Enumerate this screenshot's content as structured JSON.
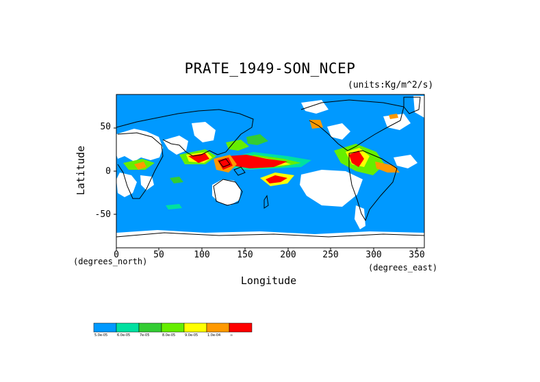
{
  "map": {
    "title": "PRATE_1949-SON_NCEP",
    "units": "(units:Kg/m^2/s)",
    "x_axis": {
      "label": "Longitude",
      "units_note": "(degrees_east)",
      "ticks": [
        "0",
        "50",
        "100",
        "150",
        "200",
        "250",
        "300",
        "350"
      ],
      "range": [
        0,
        360
      ]
    },
    "y_axis": {
      "label": "Latitude",
      "units_note": "(degrees_north)",
      "ticks": [
        "50",
        "0",
        "-50"
      ],
      "range": [
        -90,
        90
      ]
    },
    "legend": {
      "labels": [
        "5.0e-05",
        "6.0e-05",
        "7e-05",
        "8.0e-05",
        "9.0e-05",
        "1.0e-04",
        "∞"
      ],
      "colors": [
        "#0099ff",
        "#00e0a0",
        "#33cc33",
        "#66ee00",
        "#ffff00",
        "#ff9900",
        "#ff0000"
      ]
    }
  }
}
